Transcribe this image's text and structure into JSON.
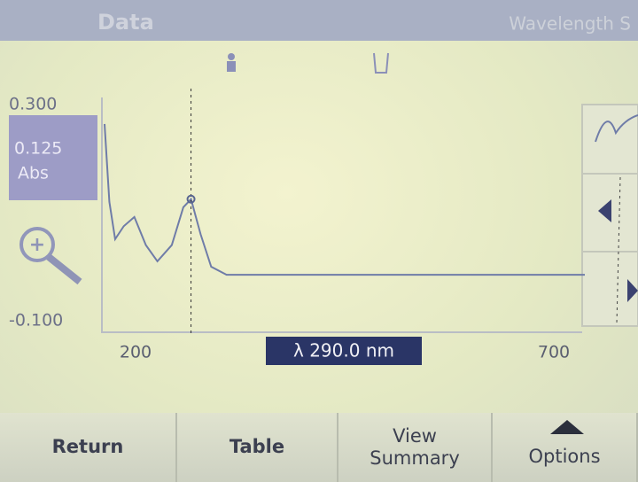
{
  "header": {
    "title": "Data",
    "mode": "Wavelength S"
  },
  "chart_data": {
    "type": "line",
    "x": [
      200,
      205,
      211,
      220,
      231,
      243,
      255,
      270,
      282,
      290,
      300,
      311,
      327,
      400,
      500,
      600,
      700
    ],
    "values": [
      0.264,
      0.12,
      0.051,
      0.075,
      0.092,
      0.04,
      0.01,
      0.04,
      0.11,
      0.125,
      0.06,
      0.0,
      -0.015,
      -0.015,
      -0.015,
      -0.015,
      -0.015
    ],
    "color": "#6f7ca8",
    "xlim": [
      200,
      700
    ],
    "xticks": [
      200,
      700
    ],
    "ylim": [
      -0.1,
      0.3
    ],
    "yticks": [
      {
        "value": -0.1,
        "label": "-0.100"
      },
      {
        "value": 0.3,
        "label": "0.300"
      }
    ],
    "cursor": {
      "x": 290,
      "x_label": "λ 290.0 nm",
      "y": 0.125,
      "y_label": "0.125",
      "unit": "Abs"
    }
  },
  "buttons": [
    "Return",
    "Table",
    "View Summary",
    "Options"
  ]
}
